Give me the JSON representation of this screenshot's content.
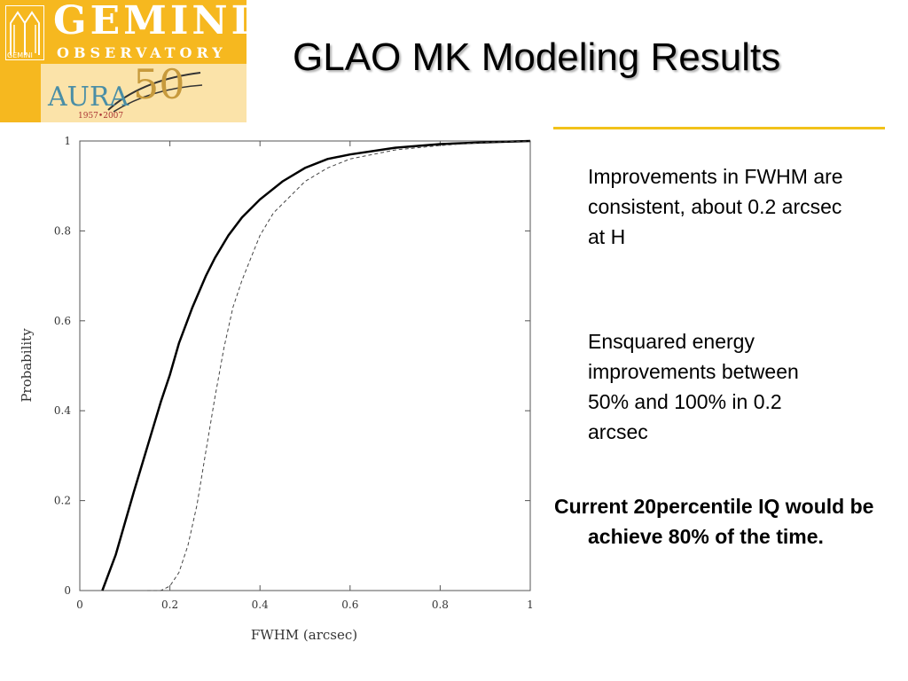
{
  "slide": {
    "title": "GLAO MK Modeling Results",
    "accent_color": "#f2c21a"
  },
  "logo": {
    "wordmark": "GEMINI",
    "subtitle": "OBSERVATORY",
    "partner": "AURA",
    "anniversary": "50",
    "years": "1957•2007",
    "small_mark": "GEMINI",
    "colors": {
      "background": "#f6b81f",
      "panel": "#fbe3a9",
      "aura": "#4a8ea6"
    }
  },
  "bullets": [
    {
      "text": "Improvements in FWHM are consistent, about 0.2 arcsec at H",
      "bold": false
    },
    {
      "text": "Ensquared energy improvements between 50% and 100% in 0.2 arcsec",
      "bold": false
    },
    {
      "text": "Current 20percentile IQ would be achieve 80% of the time.",
      "bold": true
    }
  ],
  "chart_data": {
    "type": "line",
    "title": "",
    "xlabel": "FWHM (arcsec)",
    "ylabel": "Probability",
    "xlim": [
      0,
      1
    ],
    "ylim": [
      0,
      1
    ],
    "xticks": [
      "0",
      "0.2",
      "0.4",
      "0.6",
      "0.8",
      "1"
    ],
    "yticks": [
      "0",
      "0.2",
      "0.4",
      "0.6",
      "0.8",
      "1"
    ],
    "grid": false,
    "legend": "none",
    "series": [
      {
        "style": "solid",
        "x": [
          0.05,
          0.08,
          0.1,
          0.12,
          0.15,
          0.18,
          0.2,
          0.22,
          0.25,
          0.28,
          0.3,
          0.33,
          0.36,
          0.4,
          0.45,
          0.5,
          0.55,
          0.6,
          0.7,
          0.8,
          0.9,
          1.0
        ],
        "y": [
          0.0,
          0.08,
          0.15,
          0.22,
          0.32,
          0.42,
          0.48,
          0.55,
          0.63,
          0.7,
          0.74,
          0.79,
          0.83,
          0.87,
          0.91,
          0.94,
          0.96,
          0.97,
          0.985,
          0.993,
          0.997,
          1.0
        ]
      },
      {
        "style": "dashed",
        "x": [
          0.15,
          0.18,
          0.2,
          0.22,
          0.24,
          0.26,
          0.28,
          0.3,
          0.32,
          0.34,
          0.36,
          0.38,
          0.4,
          0.43,
          0.46,
          0.5,
          0.55,
          0.6,
          0.7,
          0.8,
          0.9,
          1.0
        ],
        "y": [
          0.0,
          0.0,
          0.01,
          0.04,
          0.1,
          0.19,
          0.31,
          0.43,
          0.54,
          0.63,
          0.69,
          0.74,
          0.79,
          0.84,
          0.87,
          0.91,
          0.94,
          0.96,
          0.98,
          0.99,
          0.997,
          1.0
        ]
      }
    ]
  }
}
